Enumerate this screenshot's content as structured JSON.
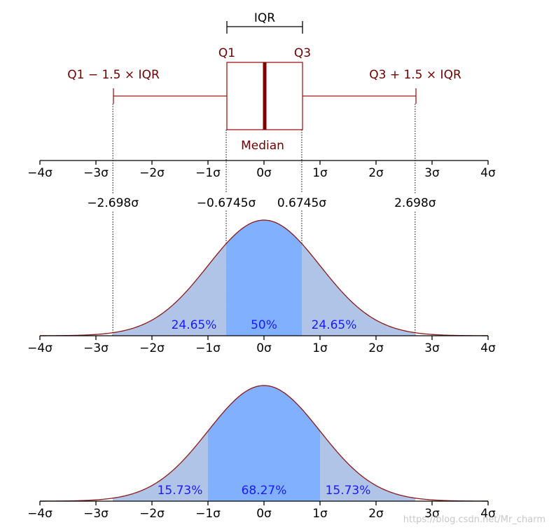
{
  "colors": {
    "box_edge": "#a01818",
    "median": "#800000",
    "label_dark": "#6b0000",
    "curve": "#8b1a1a",
    "fill_outer": "#b0c4e8",
    "fill_inner": "#80b0ff",
    "percent_text": "#1a1aff",
    "axis": "#000000"
  },
  "boxplot": {
    "iqr_label": "IQR",
    "q1_label": "Q1",
    "q3_label": "Q3",
    "median_label": "Median",
    "lower_whisker_label": "Q1 − 1.5 × IQR",
    "upper_whisker_label": "Q3 + 1.5 × IQR"
  },
  "axis_ticks": [
    {
      "value": -4,
      "label": "−4σ"
    },
    {
      "value": -3,
      "label": "−3σ"
    },
    {
      "value": -2,
      "label": "−2σ"
    },
    {
      "value": -1,
      "label": "−1σ"
    },
    {
      "value": 0,
      "label": "0σ"
    },
    {
      "value": 1,
      "label": "1σ"
    },
    {
      "value": 2,
      "label": "2σ"
    },
    {
      "value": 3,
      "label": "3σ"
    },
    {
      "value": 4,
      "label": "4σ"
    }
  ],
  "quartile_markers": [
    {
      "value": -2.698,
      "label": "−2.698σ"
    },
    {
      "value": -0.6745,
      "label": "−0.6745σ"
    },
    {
      "value": 0.6745,
      "label": "0.6745σ"
    },
    {
      "value": 2.698,
      "label": "2.698σ"
    }
  ],
  "middle_panel": {
    "regions": [
      {
        "from": -2.698,
        "to": -0.6745,
        "percent": "24.65%",
        "shade": "outer",
        "label_x": -1.25
      },
      {
        "from": -0.6745,
        "to": 0.6745,
        "percent": "50%",
        "shade": "inner",
        "label_x": 0
      },
      {
        "from": 0.6745,
        "to": 2.698,
        "percent": "24.65%",
        "shade": "outer",
        "label_x": 1.25
      }
    ]
  },
  "bottom_panel": {
    "regions": [
      {
        "from": -2.698,
        "to": -1,
        "percent": "15.73%",
        "shade": "outer",
        "label_x": -1.5
      },
      {
        "from": -1,
        "to": 1,
        "percent": "68.27%",
        "shade": "inner",
        "label_x": 0
      },
      {
        "from": 1,
        "to": 2.698,
        "percent": "15.73%",
        "shade": "outer",
        "label_x": 1.5
      }
    ]
  },
  "watermark": "https://blog.csdn.net/Mr_charm"
}
